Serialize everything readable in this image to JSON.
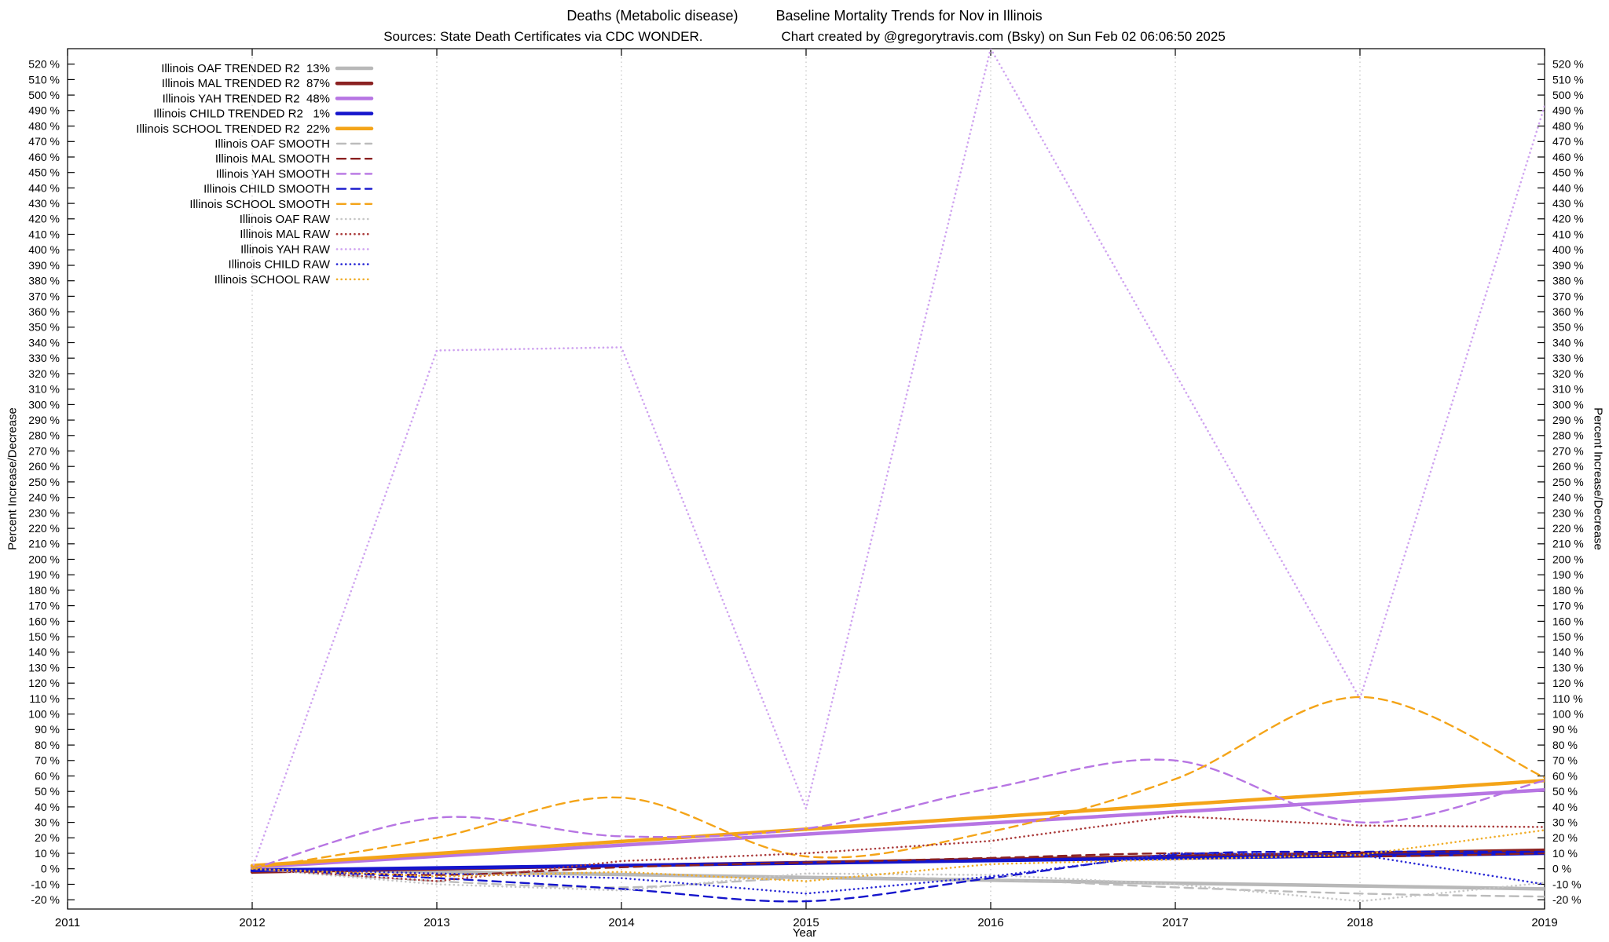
{
  "header": {
    "title_main": "Deaths (Metabolic disease)",
    "title_sub": "Baseline Mortality Trends for Nov in Illinois",
    "sources": "Sources: State Death Certificates via CDC WONDER.",
    "credit": "Chart created by @gregorytravis.com (Bsky) on Sun Feb 02 06:06:50 2025"
  },
  "chart_data": {
    "type": "line",
    "title": "Deaths (Metabolic disease)  Baseline Mortality Trends for Nov in Illinois",
    "xlabel": "Year",
    "ylabel": "Percent Increase/Decrease",
    "xlim": [
      2011,
      2019
    ],
    "ylim": [
      -20,
      520
    ],
    "ytick_step": 10,
    "ytick_suffix": " %",
    "xticks": [
      2011,
      2012,
      2013,
      2014,
      2015,
      2016,
      2017,
      2018,
      2019
    ],
    "grid": "vertical-dotted",
    "legend_position": "top-left",
    "x": [
      2012,
      2013,
      2014,
      2015,
      2016,
      2017,
      2018,
      2019
    ],
    "series": [
      {
        "name": "Illinois OAF TRENDED R2  13%",
        "color": "#b8b8b8",
        "stroke": "solid",
        "curve": "straight",
        "width": 4.5,
        "values": [
          0,
          -1.9,
          -3.7,
          -5.6,
          -7.4,
          -9.3,
          -11.1,
          -13
        ]
      },
      {
        "name": "Illinois MAL TRENDED R2  87%",
        "color": "#8b2121",
        "stroke": "solid",
        "curve": "straight",
        "width": 4.5,
        "values": [
          -2,
          0,
          2,
          4,
          6,
          8,
          10,
          12
        ]
      },
      {
        "name": "Illinois YAH TRENDED R2  48%",
        "color": "#b775e3",
        "stroke": "solid",
        "curve": "straight",
        "width": 4.5,
        "values": [
          1,
          8.1,
          15.3,
          22.4,
          29.6,
          36.7,
          43.9,
          51
        ]
      },
      {
        "name": "Illinois CHILD TRENDED R2   1%",
        "color": "#1515cc",
        "stroke": "solid",
        "curve": "straight",
        "width": 4.5,
        "values": [
          -1,
          0.6,
          2.1,
          3.7,
          5.3,
          6.9,
          8.4,
          10
        ]
      },
      {
        "name": "Illinois SCHOOL TRENDED R2  22%",
        "color": "#f4a418",
        "stroke": "solid",
        "curve": "straight",
        "width": 4.5,
        "values": [
          2,
          9.9,
          17.7,
          25.6,
          33.4,
          41.3,
          49.1,
          57
        ]
      },
      {
        "name": "Illinois OAF SMOOTH",
        "color": "#bcbcbc",
        "stroke": "dashed",
        "curve": "smooth",
        "width": 2.4,
        "values": [
          0,
          -8,
          -12,
          -6,
          -7,
          -12,
          -16,
          -18
        ]
      },
      {
        "name": "Illinois MAL SMOOTH",
        "color": "#8b2121",
        "stroke": "dashed",
        "curve": "smooth",
        "width": 2.4,
        "values": [
          0,
          -4,
          1,
          4,
          7,
          10,
          8,
          10
        ]
      },
      {
        "name": "Illinois YAH SMOOTH",
        "color": "#b775e3",
        "stroke": "dashed",
        "curve": "smooth",
        "width": 2.4,
        "values": [
          0,
          33,
          21,
          26,
          52,
          70,
          30,
          57
        ]
      },
      {
        "name": "Illinois CHILD SMOOTH",
        "color": "#1515cc",
        "stroke": "dashed",
        "curve": "smooth",
        "width": 2.4,
        "values": [
          0,
          -6,
          -13,
          -21,
          -6,
          9,
          11,
          11
        ]
      },
      {
        "name": "Illinois SCHOOL SMOOTH",
        "color": "#f4a418",
        "stroke": "dashed",
        "curve": "smooth",
        "width": 2.4,
        "values": [
          0,
          20,
          46,
          8,
          24,
          58,
          111,
          59
        ]
      },
      {
        "name": "Illinois OAF RAW",
        "color": "#c6c6c6",
        "stroke": "dotted",
        "curve": "straight",
        "width": 2.6,
        "values": [
          0,
          -10,
          -14,
          -3,
          -4,
          -10,
          -21,
          -9
        ]
      },
      {
        "name": "Illinois MAL RAW",
        "color": "#aa3a3a",
        "stroke": "dotted",
        "curve": "straight",
        "width": 2.6,
        "values": [
          0,
          -8,
          5,
          10,
          18,
          34,
          28,
          27
        ]
      },
      {
        "name": "Illinois YAH RAW",
        "color": "#cfa3f0",
        "stroke": "dotted",
        "curve": "straight",
        "width": 2.6,
        "values": [
          0,
          335,
          337,
          39,
          530,
          320,
          110,
          493
        ]
      },
      {
        "name": "Illinois CHILD RAW",
        "color": "#2a2ad6",
        "stroke": "dotted",
        "curve": "straight",
        "width": 2.6,
        "values": [
          0,
          -3,
          -6,
          -16,
          -5,
          10,
          9,
          -10
        ]
      },
      {
        "name": "Illinois SCHOOL RAW",
        "color": "#f0ad2a",
        "stroke": "dotted",
        "curve": "straight",
        "width": 2.6,
        "values": [
          0,
          -5,
          -2,
          -8,
          3,
          6,
          9,
          25
        ]
      }
    ]
  }
}
